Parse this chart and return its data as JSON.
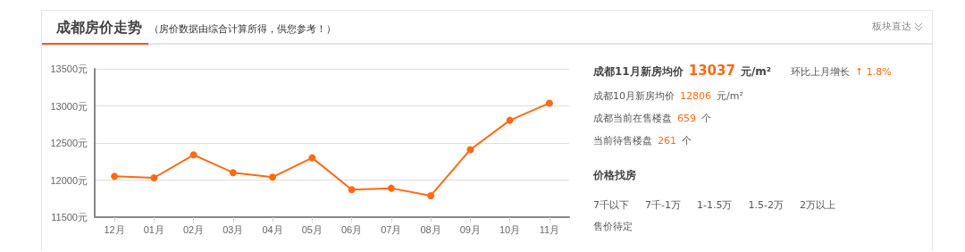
{
  "chart_data": {
    "type": "line",
    "title": "成都房价走势",
    "subtitle": "（房价数据由综合计算所得，供您参考！）",
    "categories": [
      "12月",
      "01月",
      "02月",
      "03月",
      "04月",
      "05月",
      "06月",
      "07月",
      "08月",
      "09月",
      "10月",
      "11月"
    ],
    "series": [
      {
        "color": "#ff6a13",
        "values": [
          12050,
          12030,
          12340,
          12100,
          12040,
          12300,
          11870,
          11890,
          11790,
          12410,
          12806,
          13037
        ]
      }
    ],
    "ylim": [
      11500,
      13500
    ],
    "yticks": [
      {
        "value": 11500,
        "label": "11500元"
      },
      {
        "value": 12000,
        "label": "12000元"
      },
      {
        "value": 12500,
        "label": "12500元"
      },
      {
        "value": 13000,
        "label": "13000元"
      },
      {
        "value": 13500,
        "label": "13500元"
      }
    ],
    "grid": "y",
    "marker": "circle",
    "line_style": "solid",
    "annotations": [
      "板块直达",
      "成都11月新房均价",
      "13037",
      "元/m²",
      "环比上月增长",
      "↑ 1.8%",
      "成都10月新房均价",
      "12806",
      "元/m²",
      "成都当前在售楼盘",
      "659",
      "个",
      "当前待售楼盘",
      "261",
      "个",
      "价格找房",
      "7千以下",
      "7千-1万",
      "1-1.5万",
      "1.5-2万",
      "2万以上",
      "售价待定"
    ]
  }
}
